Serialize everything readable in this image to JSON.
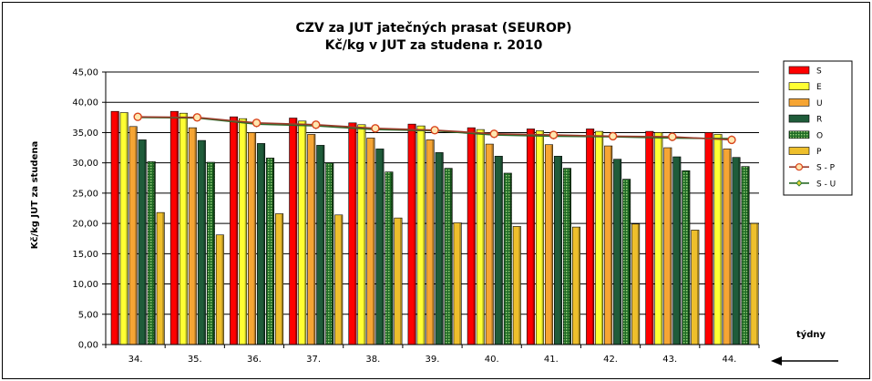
{
  "chart_data": {
    "type": "bar",
    "title": "CZV za JUT jatečných prasat (SEUROP)",
    "subtitle": "Kč/kg v JUT za studena r. 2010",
    "ylabel": "Kč/kg  JUT za studena",
    "xlabel": "týdny",
    "ylim": [
      0,
      45
    ],
    "ytick_step": 5,
    "ytick_labels": [
      "0,00",
      "5,00",
      "10,00",
      "15,00",
      "20,00",
      "25,00",
      "30,00",
      "35,00",
      "40,00",
      "45,00"
    ],
    "grid": true,
    "legend_position": "right",
    "categories": [
      "34.",
      "35.",
      "36.",
      "37.",
      "38.",
      "39.",
      "40.",
      "41.",
      "42.",
      "43.",
      "44."
    ],
    "series": [
      {
        "name": "S",
        "kind": "bar",
        "color": "#ff0000",
        "values": [
          38.5,
          38.5,
          37.6,
          37.4,
          36.6,
          36.4,
          35.8,
          35.6,
          35.6,
          35.2,
          35.0
        ]
      },
      {
        "name": "E",
        "kind": "bar",
        "color": "#ffff33",
        "values": [
          38.3,
          38.2,
          37.3,
          36.9,
          36.3,
          36.1,
          35.5,
          35.3,
          35.2,
          35.0,
          34.7
        ]
      },
      {
        "name": "U",
        "kind": "bar",
        "color": "#f6a534",
        "values": [
          36.0,
          35.8,
          35.0,
          34.7,
          34.1,
          33.8,
          33.1,
          33.0,
          32.8,
          32.5,
          32.3
        ]
      },
      {
        "name": "R",
        "kind": "bar",
        "color": "#1f5c3a",
        "values": [
          33.8,
          33.7,
          33.2,
          32.9,
          32.3,
          31.7,
          31.1,
          31.1,
          30.6,
          31.0,
          30.9
        ]
      },
      {
        "name": "O",
        "kind": "bar",
        "color": "#4f9a3c",
        "pattern": true,
        "values": [
          30.2,
          30.1,
          30.8,
          30.0,
          28.5,
          29.1,
          28.3,
          29.1,
          27.3,
          28.7,
          29.4
        ]
      },
      {
        "name": "P",
        "kind": "bar",
        "color": "#eebf2c",
        "values": [
          21.8,
          18.1,
          21.6,
          21.4,
          20.9,
          20.1,
          19.5,
          19.4,
          19.9,
          18.9,
          20.0
        ]
      },
      {
        "name": "S - P",
        "kind": "line",
        "color": "#d9441c",
        "marker": "circle",
        "values": [
          37.6,
          37.5,
          36.6,
          36.3,
          35.7,
          35.4,
          34.8,
          34.6,
          34.4,
          34.3,
          33.8
        ]
      },
      {
        "name": "S - U",
        "kind": "line",
        "color": "#2e7d32",
        "marker": "diamond",
        "values": [
          37.5,
          37.4,
          36.4,
          36.1,
          35.5,
          35.3,
          34.6,
          34.4,
          34.3,
          34.1,
          34.0
        ]
      }
    ]
  }
}
